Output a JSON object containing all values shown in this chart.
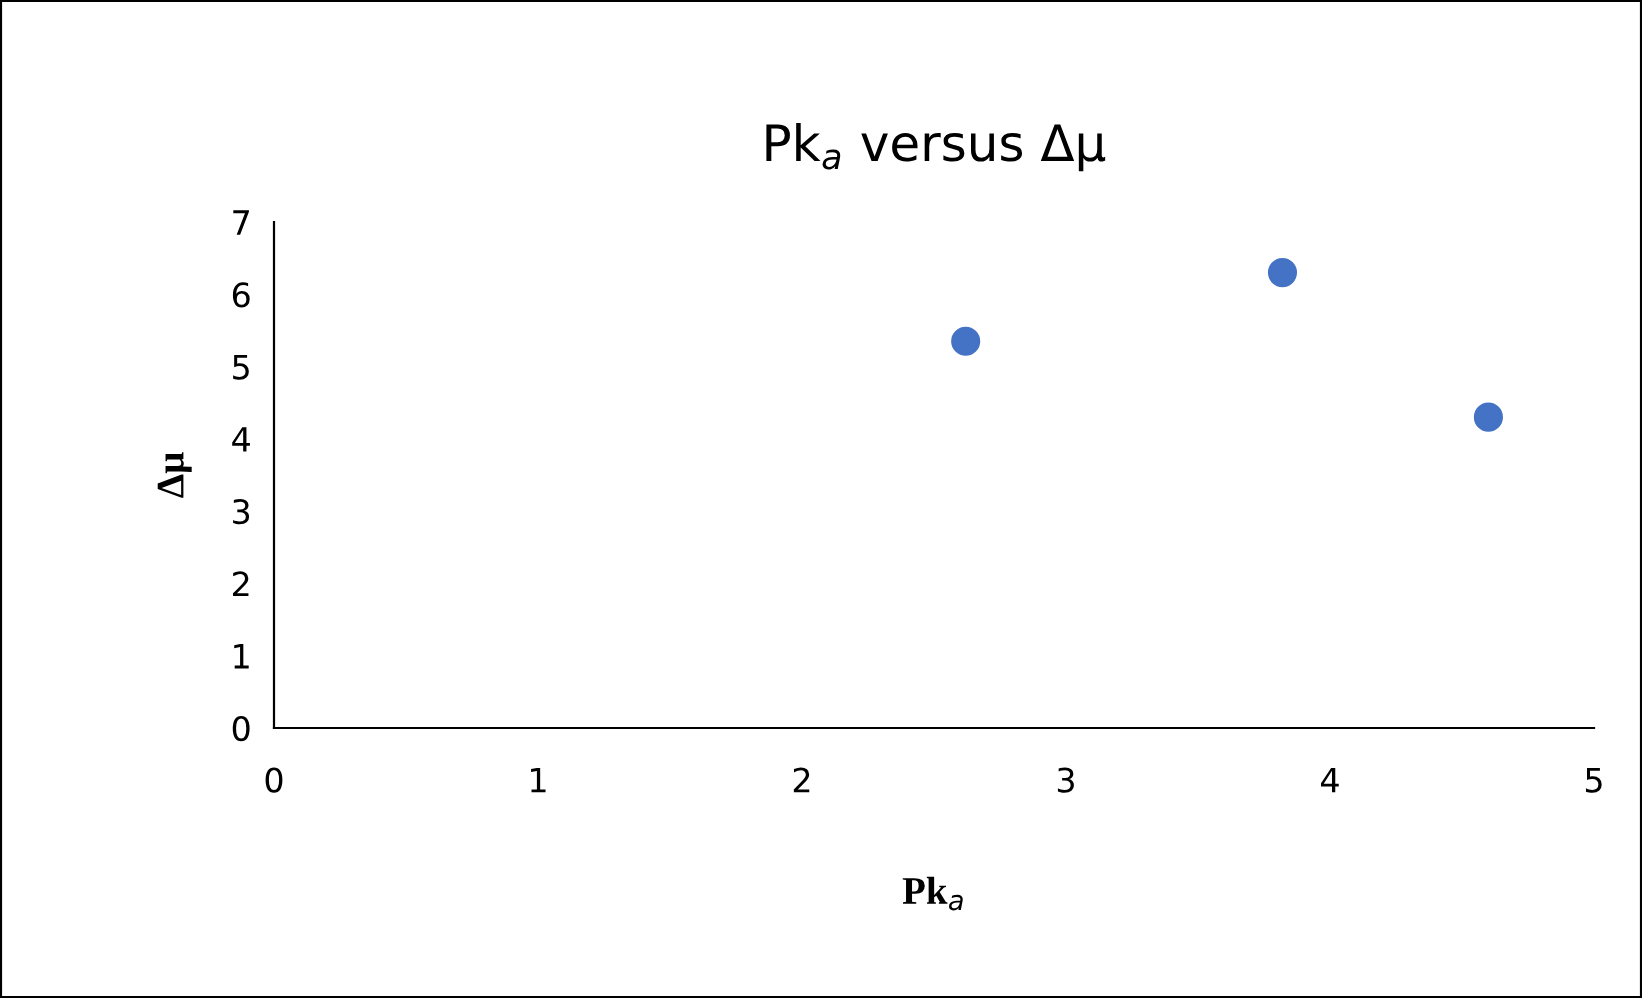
{
  "chart_data": {
    "type": "scatter",
    "title": "Pk$_{a}$ versus Δμ",
    "xlabel": "Pk$_{a}$",
    "ylabel": "Δμ",
    "x": [
      2.62,
      3.82,
      4.6
    ],
    "series": [
      {
        "color": "#4472c4",
        "values": [
          5.35,
          6.3,
          4.3
        ]
      }
    ],
    "xlim": [
      0,
      5
    ],
    "xticks": [
      0,
      1,
      2,
      3,
      4,
      5
    ],
    "ylim": [
      0,
      7
    ],
    "yticks": [
      0,
      1,
      2,
      3,
      4,
      5,
      6,
      7
    ],
    "grid": false,
    "legend": false,
    "marker": "circle"
  }
}
